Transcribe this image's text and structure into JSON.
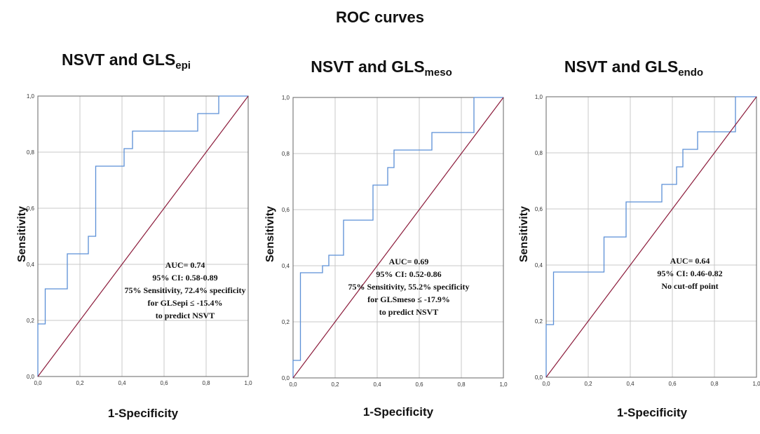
{
  "title": "ROC curves",
  "chart_data": [
    {
      "type": "line",
      "title_main": "NSVT and GLS",
      "title_sub": "epi",
      "xlabel": "1-Specificity",
      "ylabel": "Sensitivity",
      "xlim": [
        0,
        1
      ],
      "ylim": [
        0,
        1
      ],
      "xticks": [
        "0,0",
        "0,2",
        "0,4",
        "0,6",
        "0,8",
        "1,0"
      ],
      "yticks": [
        "0,0",
        "0,2",
        "0,4",
        "0,6",
        "0,8",
        "1,0"
      ],
      "grid": true,
      "series": [
        {
          "name": "ROC",
          "color": "#5b8fd6",
          "x": [
            0,
            0,
            0.035,
            0.035,
            0.14,
            0.14,
            0.24,
            0.24,
            0.275,
            0.275,
            0.41,
            0.41,
            0.45,
            0.45,
            0.76,
            0.76,
            0.86,
            0.86,
            1.0
          ],
          "y": [
            0,
            0.1875,
            0.1875,
            0.3125,
            0.3125,
            0.4375,
            0.4375,
            0.5,
            0.5,
            0.75,
            0.75,
            0.8125,
            0.8125,
            0.875,
            0.875,
            0.9375,
            0.9375,
            1.0,
            1.0
          ]
        },
        {
          "name": "Reference",
          "color": "#8b1a3a",
          "x": [
            0,
            1
          ],
          "y": [
            0,
            1
          ]
        }
      ],
      "annotations": [
        "AUC= 0.74",
        "95% CI: 0.58-0.89",
        "75% Sensitivity, 72.4% specificity",
        "for GLSepi ≤ -15.4%",
        "to predict NSVT"
      ]
    },
    {
      "type": "line",
      "title_main": "NSVT and GLS",
      "title_sub": "meso",
      "xlabel": "1-Specificity",
      "ylabel": "Sensitivity",
      "xlim": [
        0,
        1
      ],
      "ylim": [
        0,
        1
      ],
      "xticks": [
        "0,0",
        "0,2",
        "0,4",
        "0,6",
        "0,8",
        "1,0"
      ],
      "yticks": [
        "0,0",
        "0,2",
        "0,4",
        "0,6",
        "0,8",
        "1,0"
      ],
      "grid": true,
      "series": [
        {
          "name": "ROC",
          "color": "#5b8fd6",
          "x": [
            0,
            0,
            0.035,
            0.035,
            0.14,
            0.14,
            0.17,
            0.17,
            0.24,
            0.24,
            0.38,
            0.38,
            0.45,
            0.45,
            0.48,
            0.48,
            0.66,
            0.66,
            0.86,
            0.86,
            1.0
          ],
          "y": [
            0,
            0.0625,
            0.0625,
            0.375,
            0.375,
            0.4,
            0.4,
            0.4375,
            0.4375,
            0.5625,
            0.5625,
            0.6875,
            0.6875,
            0.75,
            0.75,
            0.8125,
            0.8125,
            0.875,
            0.875,
            1.0,
            1.0
          ]
        },
        {
          "name": "Reference",
          "color": "#8b1a3a",
          "x": [
            0,
            1
          ],
          "y": [
            0,
            1
          ]
        }
      ],
      "annotations": [
        "AUC= 0.69",
        "95% CI: 0.52-0.86",
        "75% Sensitivity, 55.2% specificity",
        "for GLSmeso ≤ -17.9%",
        "to predict NSVT"
      ]
    },
    {
      "type": "line",
      "title_main": "NSVT and GLS",
      "title_sub": "endo",
      "xlabel": "1-Specificity",
      "ylabel": "Sensitivity",
      "xlim": [
        0,
        1
      ],
      "ylim": [
        0,
        1
      ],
      "xticks": [
        "0,0",
        "0,2",
        "0,4",
        "0,6",
        "0,8",
        "1,0"
      ],
      "yticks": [
        "0,0",
        "0,2",
        "0,4",
        "0,6",
        "0,8",
        "1,0"
      ],
      "grid": true,
      "series": [
        {
          "name": "ROC",
          "color": "#5b8fd6",
          "x": [
            0,
            0,
            0.035,
            0.035,
            0.275,
            0.275,
            0.38,
            0.38,
            0.55,
            0.55,
            0.62,
            0.62,
            0.65,
            0.65,
            0.72,
            0.72,
            0.9,
            0.9,
            1.0
          ],
          "y": [
            0,
            0.1875,
            0.1875,
            0.375,
            0.375,
            0.5,
            0.5,
            0.625,
            0.625,
            0.6875,
            0.6875,
            0.75,
            0.75,
            0.8125,
            0.8125,
            0.875,
            0.875,
            1.0,
            1.0
          ]
        },
        {
          "name": "Reference",
          "color": "#8b1a3a",
          "x": [
            0,
            1
          ],
          "y": [
            0,
            1
          ]
        }
      ],
      "annotations": [
        "AUC= 0.64",
        "95% CI: 0.46-0.82",
        "No cut-off point"
      ]
    }
  ]
}
